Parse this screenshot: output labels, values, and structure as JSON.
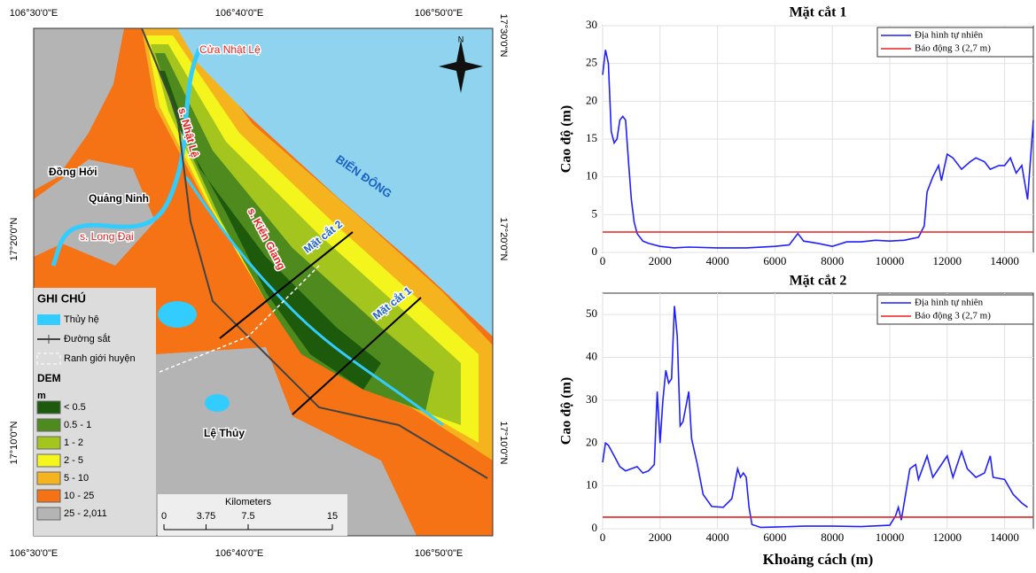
{
  "map": {
    "coords": {
      "top": [
        "106°30'0\"E",
        "106°40'0\"E",
        "106°50'0\"E"
      ],
      "bottom": [
        "106°30'0\"E",
        "106°40'0\"E",
        "106°50'0\"E"
      ],
      "left": [
        "17°20'0\"N",
        "17°10'0\"N"
      ],
      "right": [
        "17°30'0\"N",
        "17°20'0\"N",
        "17°10'0\"N"
      ]
    },
    "labels": [
      "Cửa Nhật Lệ",
      "s. Nhật Lệ",
      "Đồng Hới",
      "Quảng Ninh",
      "BIỂN ĐÔNG",
      "s. Long Đại",
      "s. Kiến Giang",
      "Mặt cắt 2",
      "Mặt cắt 1",
      "Lệ Thủy",
      "N"
    ],
    "legend": {
      "title": "GHI CHÚ",
      "items": [
        "Thủy hệ",
        "Đường sắt",
        "Ranh giới huyện"
      ],
      "dem_title": "DEM",
      "unit": "m",
      "classes": [
        {
          "label": "< 0.5",
          "color": "#1e5a0c"
        },
        {
          "label": "0.5 - 1",
          "color": "#4f8a1e"
        },
        {
          "label": "1 - 2",
          "color": "#a4c41e"
        },
        {
          "label": "2 - 5",
          "color": "#f5f51e"
        },
        {
          "label": "5 - 10",
          "color": "#f5b41e"
        },
        {
          "label": "10 - 25",
          "color": "#f57314"
        },
        {
          "label": "25 - 2,011",
          "color": "#b4b4b4"
        }
      ]
    },
    "scale": {
      "title": "Kilometers",
      "ticks": [
        0,
        3.75,
        7.5,
        15
      ]
    }
  },
  "chart_data": [
    {
      "type": "line",
      "title": "Mặt cắt 1",
      "ylabel": "Cao độ (m)",
      "xlim": [
        0,
        15000
      ],
      "ylim": [
        0,
        30
      ],
      "xticks": [
        0,
        2000,
        4000,
        6000,
        8000,
        10000,
        12000,
        14000
      ],
      "yticks": [
        0,
        5,
        10,
        15,
        20,
        25,
        30
      ],
      "grid": true,
      "legend": "upper right",
      "series": [
        {
          "name": "Địa hình tự nhiên",
          "color": "#1f1fff",
          "x": [
            0,
            100,
            200,
            300,
            400,
            500,
            600,
            700,
            800,
            900,
            1000,
            1100,
            1200,
            1400,
            1600,
            2000,
            2500,
            3000,
            4000,
            5000,
            6000,
            6500,
            6800,
            7000,
            7500,
            8000,
            8500,
            9000,
            9500,
            10000,
            10500,
            11000,
            11200,
            11300,
            11500,
            11700,
            11800,
            12000,
            12200,
            12500,
            12800,
            13000,
            13300,
            13500,
            13800,
            14000,
            14200,
            14400,
            14600,
            14800,
            15000
          ],
          "values": [
            23.5,
            26.8,
            25,
            16,
            14.5,
            15,
            17.5,
            18,
            17.5,
            12,
            7,
            4,
            2.5,
            1.5,
            1.2,
            0.8,
            0.6,
            0.7,
            0.6,
            0.6,
            0.8,
            1.0,
            2.5,
            1.5,
            1.2,
            0.8,
            1.4,
            1.4,
            1.6,
            1.5,
            1.6,
            2.0,
            3.5,
            8,
            10,
            11.5,
            9.5,
            13,
            12.5,
            11,
            12,
            12.5,
            12,
            11,
            11.5,
            11.5,
            12.5,
            10.5,
            11.5,
            7,
            17.5
          ]
        },
        {
          "name": "Báo động 3 (2,7 m)",
          "color": "#e8201e",
          "x": [
            0,
            15000
          ],
          "values": [
            2.7,
            2.7
          ]
        }
      ]
    },
    {
      "type": "line",
      "title": "Mặt cắt 2",
      "ylabel": "Cao độ (m)",
      "xlabel": "Khoảng cách (m)",
      "xlim": [
        0,
        15000
      ],
      "ylim": [
        0,
        55
      ],
      "xticks": [
        0,
        2000,
        4000,
        6000,
        8000,
        10000,
        12000,
        14000
      ],
      "yticks": [
        0,
        10,
        20,
        30,
        40,
        50
      ],
      "grid": true,
      "legend": "upper right",
      "series": [
        {
          "name": "Địa hình tự nhiên",
          "color": "#1f1fff",
          "x": [
            0,
            100,
            200,
            400,
            600,
            800,
            1000,
            1200,
            1400,
            1600,
            1800,
            1900,
            2000,
            2100,
            2200,
            2300,
            2400,
            2500,
            2600,
            2700,
            2800,
            3000,
            3100,
            3300,
            3500,
            3800,
            4200,
            4500,
            4700,
            4800,
            4900,
            5000,
            5100,
            5200,
            5500,
            6000,
            7000,
            8000,
            9000,
            10000,
            10200,
            10300,
            10400,
            10700,
            10900,
            11000,
            11300,
            11500,
            11800,
            12000,
            12200,
            12500,
            12700,
            13000,
            13300,
            13500,
            13600,
            14000,
            14300,
            14600,
            14800
          ],
          "values": [
            15.5,
            20,
            19.5,
            17,
            14.5,
            13.5,
            14,
            14.5,
            13,
            13.5,
            15,
            32,
            20,
            30,
            37,
            34,
            35,
            52,
            45,
            24,
            25,
            32,
            21,
            15,
            8,
            5.2,
            5,
            7,
            14,
            12,
            13,
            12,
            5,
            1,
            0.3,
            0.4,
            0.6,
            0.6,
            0.5,
            0.8,
            3,
            5,
            2,
            14,
            15,
            11.5,
            17,
            12,
            15,
            17,
            12,
            18,
            14,
            12,
            13,
            17,
            12,
            11.5,
            8,
            6,
            5
          ]
        },
        {
          "name": "Báo động 3 (2,7 m)",
          "color": "#e8201e",
          "x": [
            0,
            15000
          ],
          "values": [
            2.7,
            2.7
          ]
        }
      ]
    }
  ]
}
